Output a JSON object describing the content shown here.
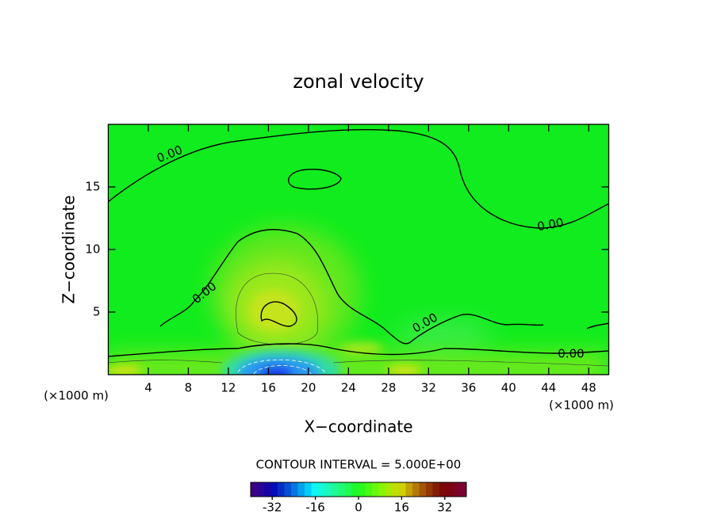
{
  "chart_data": {
    "type": "contour",
    "title": "zonal velocity",
    "x_label": "X−coordinate",
    "y_label": "Z−coordinate",
    "unit_labels": [
      "(×1000 m)",
      "(×1000 m)"
    ],
    "xlim": [
      0,
      50
    ],
    "xticks": [
      4,
      8,
      12,
      16,
      20,
      24,
      28,
      32,
      36,
      40,
      44,
      48
    ],
    "ylim": [
      0,
      20
    ],
    "yticks": [
      5,
      10,
      15
    ],
    "contour_levels": [
      {
        "value": 0,
        "label": "0.00"
      }
    ],
    "contour_interval_text": "CONTOUR INTERVAL = 5.000E+00",
    "colorbar": {
      "lim": [
        -40,
        40
      ],
      "ticks": [
        -32,
        -16,
        0,
        16,
        32
      ]
    }
  }
}
